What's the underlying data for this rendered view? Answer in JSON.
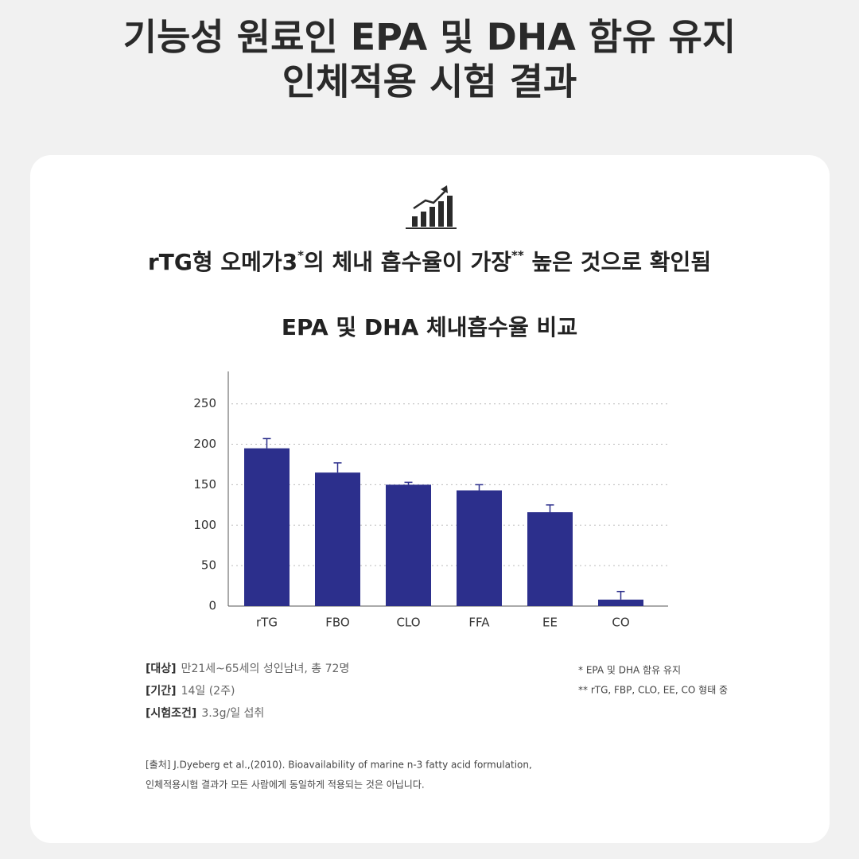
{
  "headline": [
    "기능성 원료인 EPA 및 DHA 함유 유지",
    "인체적용 시험 결과"
  ],
  "subtitle": [
    "rTG형 오메가3",
    "*",
    "의 체내 흡수율이 가장",
    "**",
    " 높은 것으로 확인됨"
  ],
  "chart_data": {
    "type": "bar",
    "title": "EPA 및 DHA 체내흡수율 비교",
    "categories": [
      "rTG",
      "FBO",
      "CLO",
      "FFA",
      "EE",
      "CO"
    ],
    "values": [
      195,
      165,
      150,
      143,
      116,
      8
    ],
    "errors": [
      12,
      12,
      3,
      7,
      9,
      10
    ],
    "color": "#2c2f8c",
    "ylim": [
      0,
      290
    ],
    "yticks": [
      0,
      50,
      100,
      150,
      200,
      250
    ],
    "grid": true
  },
  "notes": [
    {
      "key": "[대상]",
      "text": "만21세~65세의 성인남녀, 총 72명"
    },
    {
      "key": "[기간]",
      "text": "14일 (2주)"
    },
    {
      "key": "[시험조건]",
      "text": "3.3g/일 섭취"
    }
  ],
  "footnotes": [
    "* EPA 및 DHA 함유 유지",
    "** rTG, FBP, CLO, EE, CO 형태 중"
  ],
  "source": [
    "[출처] J.Dyeberg et al.,(2010). Bioavailability of marine n-3 fatty acid formulation,",
    "인체적용시험 결과가 모든 사람에게 동일하게 적용되는 것은 아닙니다."
  ]
}
